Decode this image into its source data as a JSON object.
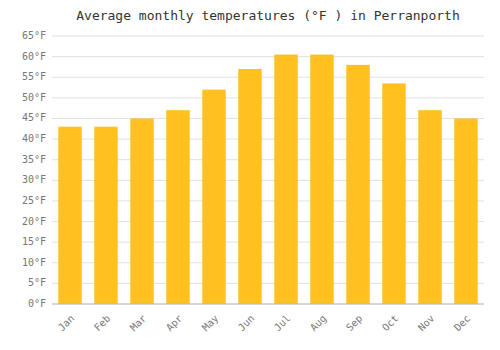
{
  "chart_data": {
    "type": "bar",
    "title": "Average monthly temperatures (°F ) in Perranporth",
    "categories": [
      "Jan",
      "Feb",
      "Mar",
      "Apr",
      "May",
      "Jun",
      "Jul",
      "Aug",
      "Sep",
      "Oct",
      "Nov",
      "Dec"
    ],
    "values": [
      43,
      43,
      45,
      47,
      52,
      57,
      60.5,
      60.5,
      58,
      53.5,
      47,
      45
    ],
    "color": "#FFC020",
    "ylim": [
      0,
      65
    ],
    "yticks": [
      {
        "value": 0,
        "label": "0°F"
      },
      {
        "value": 5,
        "label": "5°F"
      },
      {
        "value": 10,
        "label": "10°F"
      },
      {
        "value": 15,
        "label": "15°F"
      },
      {
        "value": 20,
        "label": "20°F"
      },
      {
        "value": 25,
        "label": "25°F"
      },
      {
        "value": 30,
        "label": "30°F"
      },
      {
        "value": 35,
        "label": "35°F"
      },
      {
        "value": 40,
        "label": "40°F"
      },
      {
        "value": 45,
        "label": "45°F"
      },
      {
        "value": 50,
        "label": "50°F"
      },
      {
        "value": 55,
        "label": "55°F"
      },
      {
        "value": 60,
        "label": "60°F"
      },
      {
        "value": 65,
        "label": "65°F"
      }
    ],
    "grid": true
  }
}
